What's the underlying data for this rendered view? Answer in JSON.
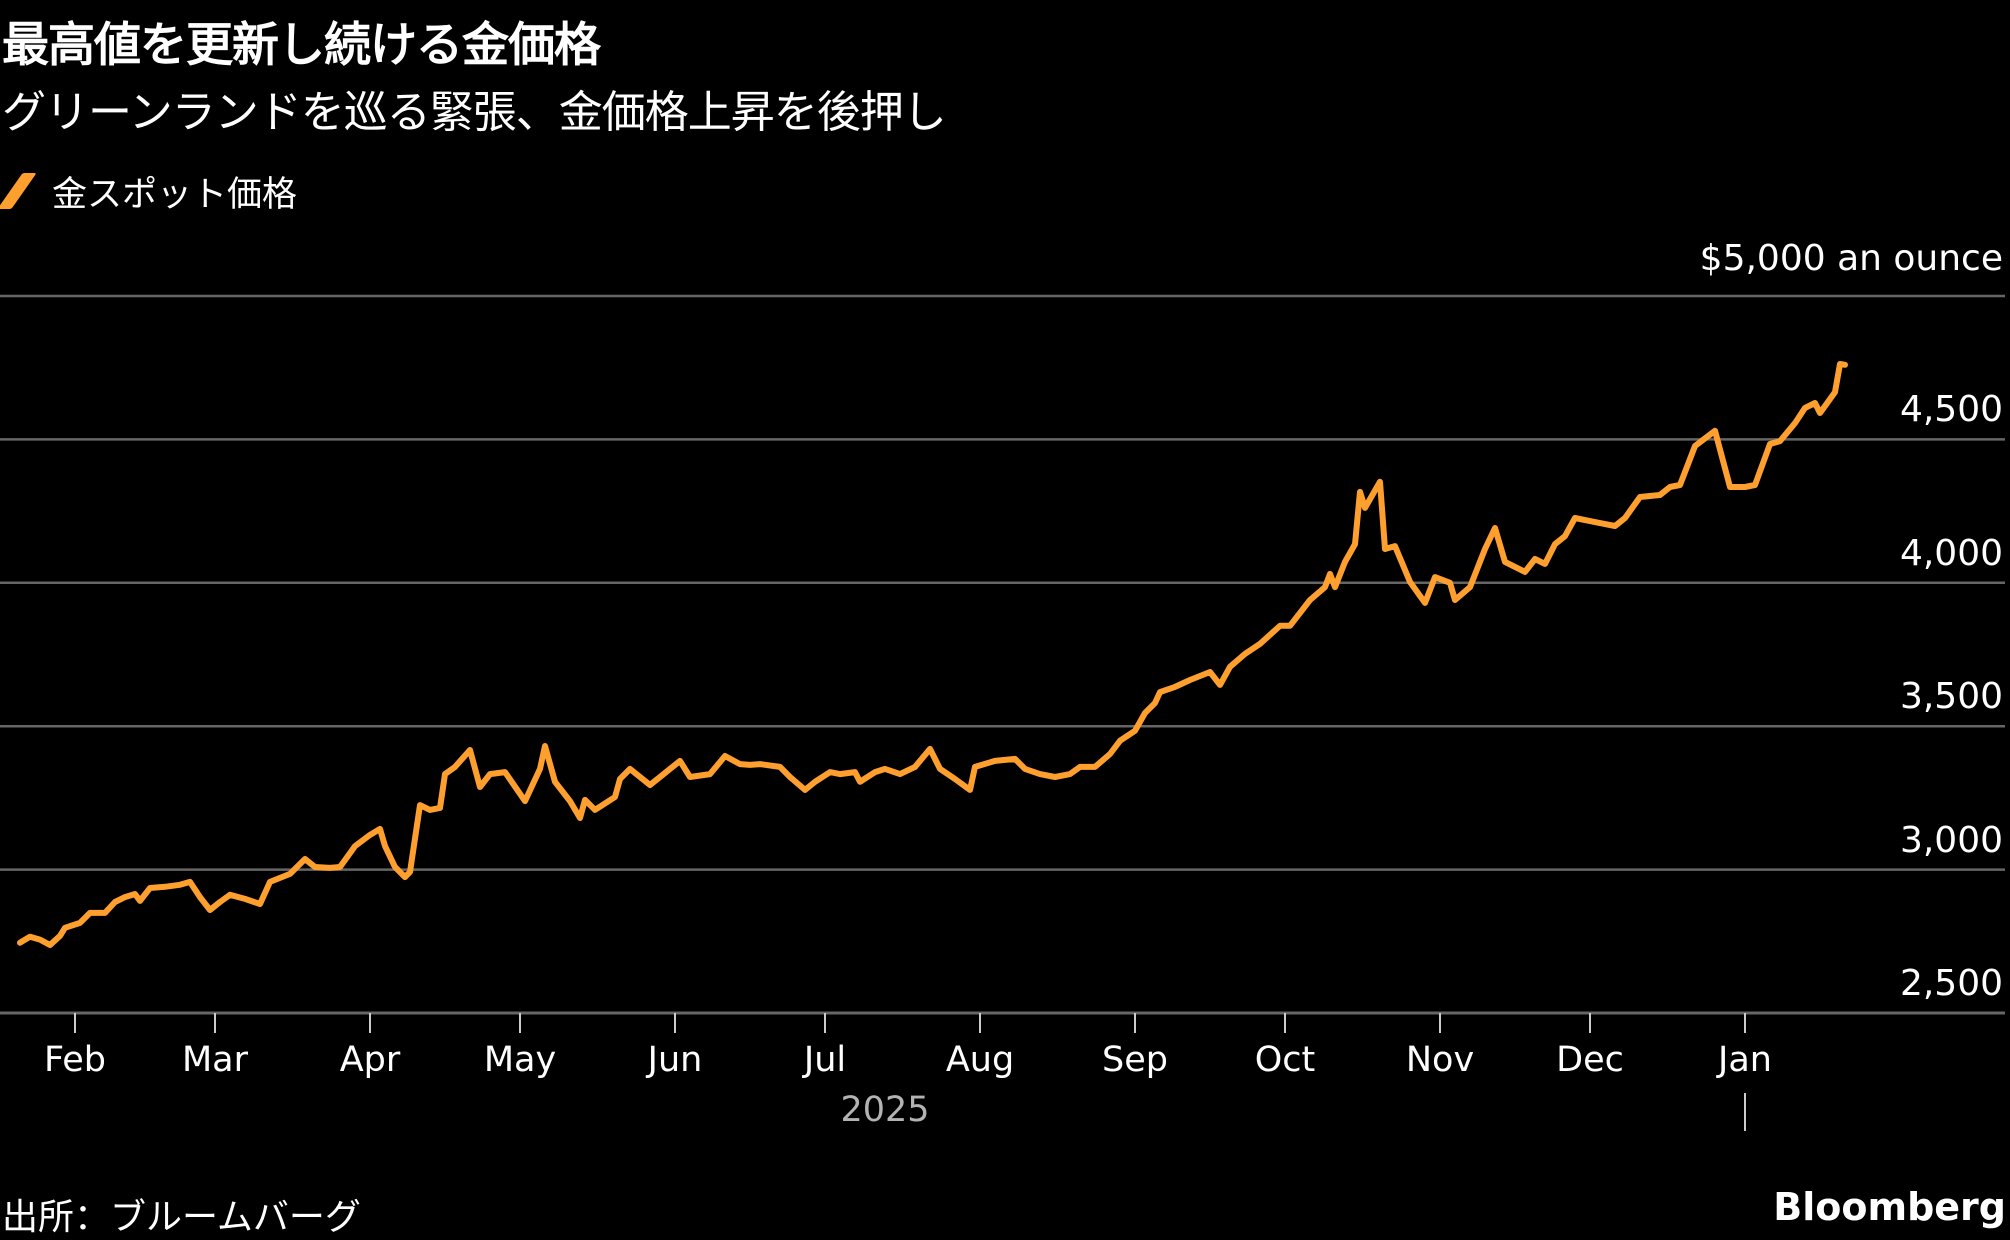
{
  "header": {
    "title": "最高値を更新し続ける金価格",
    "subtitle": "グリーンランドを巡る緊張、金価格上昇を後押し"
  },
  "legend": {
    "items": [
      {
        "label": "金スポット価格",
        "color": "#FF9F2E",
        "icon": "slash-line-icon"
      }
    ]
  },
  "footer": {
    "source": "出所：ブルームバーグ",
    "brand": "Bloomberg"
  },
  "colors": {
    "background": "#000000",
    "line": "#FF9F2E",
    "grid": "#666666",
    "text": "#FFFFFF",
    "year_text": "#B3B3B3"
  },
  "chart_data": {
    "type": "line",
    "title": "最高値を更新し続ける金価格",
    "subtitle": "グリーンランドを巡る緊張、金価格上昇を後押し",
    "xlabel": "2025",
    "ylabel": "$ an ounce",
    "unit_label": "$5,000 an ounce",
    "ylim": [
      2500,
      5000
    ],
    "yticks": [
      2500,
      3000,
      3500,
      4000,
      4500,
      5000
    ],
    "ytick_labels": [
      "2,500",
      "3,000",
      "3,500",
      "4,000",
      "4,500",
      "$5,000 an ounce"
    ],
    "x_unit": "days since 2025-01-01",
    "x_ticks": [
      {
        "label": "Feb",
        "day": 31
      },
      {
        "label": "Mar",
        "day": 59
      },
      {
        "label": "Apr",
        "day": 90
      },
      {
        "label": "May",
        "day": 120
      },
      {
        "label": "Jun",
        "day": 151
      },
      {
        "label": "Jul",
        "day": 181
      },
      {
        "label": "Aug",
        "day": 212
      },
      {
        "label": "Sep",
        "day": 243
      },
      {
        "label": "Oct",
        "day": 273
      },
      {
        "label": "Nov",
        "day": 304
      },
      {
        "label": "Dec",
        "day": 334
      },
      {
        "label": "Jan",
        "day": 365
      }
    ],
    "year_label": {
      "label": "2025",
      "day": 193
    },
    "grid": true,
    "legend_position": "top-left",
    "series": [
      {
        "name": "金スポット価格",
        "x": [
          20,
          22,
          24,
          26,
          28,
          29,
          32,
          34,
          37,
          39,
          41,
          43,
          44,
          46,
          49,
          52,
          54,
          56,
          58,
          60,
          62,
          65,
          68,
          70,
          74,
          77,
          79,
          82,
          84,
          87,
          90,
          92,
          93,
          95,
          97,
          98,
          100,
          102,
          104,
          105,
          107,
          110,
          112,
          114,
          117,
          121,
          124,
          125,
          127,
          130,
          132,
          133,
          135,
          139,
          140,
          142,
          146,
          148,
          152,
          154,
          158,
          161,
          164,
          166,
          168,
          172,
          174,
          177,
          179,
          182,
          184,
          187,
          188,
          191,
          193,
          196,
          199,
          202,
          204,
          207,
          210,
          211,
          215,
          219,
          221,
          224,
          227,
          230,
          232,
          235,
          238,
          240,
          243,
          245,
          247,
          248,
          251,
          254,
          258,
          260,
          262,
          265,
          268,
          272,
          274,
          278,
          281,
          282,
          283,
          285,
          287,
          288,
          289,
          292,
          293,
          295,
          298,
          301,
          303,
          306,
          307,
          310,
          313,
          315,
          317,
          321,
          323,
          325,
          327,
          329,
          331,
          334,
          336,
          339,
          341,
          344,
          348,
          350,
          352,
          355,
          359,
          362,
          365,
          367,
          370,
          372,
          375,
          377,
          379,
          380,
          383,
          384,
          385
        ],
        "values": [
          2745,
          2766,
          2756,
          2737,
          2769,
          2797,
          2814,
          2849,
          2849,
          2887,
          2904,
          2915,
          2891,
          2936,
          2940,
          2947,
          2957,
          2904,
          2859,
          2887,
          2912,
          2898,
          2880,
          2957,
          2985,
          3037,
          3009,
          3006,
          3009,
          3082,
          3121,
          3142,
          3082,
          3009,
          2974,
          2992,
          3225,
          3208,
          3215,
          3333,
          3358,
          3417,
          3288,
          3333,
          3340,
          3239,
          3351,
          3431,
          3306,
          3239,
          3180,
          3243,
          3208,
          3253,
          3316,
          3351,
          3295,
          3323,
          3379,
          3323,
          3333,
          3396,
          3368,
          3365,
          3368,
          3358,
          3323,
          3278,
          3306,
          3340,
          3333,
          3340,
          3306,
          3340,
          3351,
          3333,
          3358,
          3421,
          3351,
          3316,
          3278,
          3358,
          3379,
          3386,
          3351,
          3333,
          3323,
          3333,
          3358,
          3358,
          3403,
          3449,
          3484,
          3546,
          3581,
          3619,
          3637,
          3661,
          3689,
          3644,
          3707,
          3752,
          3787,
          3850,
          3850,
          3940,
          3985,
          4031,
          3985,
          4073,
          4135,
          4317,
          4261,
          4352,
          4118,
          4128,
          4003,
          3930,
          4020,
          4000,
          3940,
          3985,
          4118,
          4191,
          4073,
          4038,
          4083,
          4066,
          4135,
          4163,
          4226,
          4215,
          4208,
          4198,
          4226,
          4299,
          4306,
          4334,
          4341,
          4477,
          4530,
          4334,
          4334,
          4341,
          4484,
          4494,
          4557,
          4610,
          4627,
          4592,
          4665,
          4763,
          4760
        ]
      }
    ]
  }
}
